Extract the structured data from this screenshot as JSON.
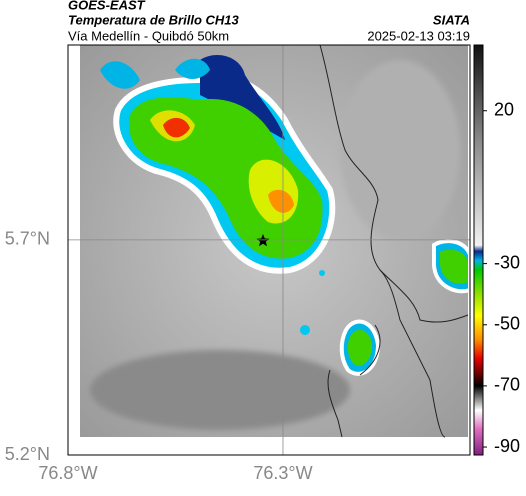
{
  "header": {
    "title": "GOES-EAST",
    "subtitle": "Temperatura de Brillo CH13",
    "location": "Vía Medellín - Quibdó 50km",
    "source": "SIATA",
    "timestamp": "2025-02-13 03:19"
  },
  "map": {
    "xlim": [
      -76.8,
      -75.865
    ],
    "ylim": [
      5.2,
      6.153
    ],
    "xticks": [
      {
        "value": -76.8,
        "label": "76.8°W"
      },
      {
        "value": -76.3,
        "label": "76.3°W"
      }
    ],
    "yticks": [
      {
        "value": 5.2,
        "label": "5.2°N"
      },
      {
        "value": 5.7,
        "label": "5.7°N"
      }
    ],
    "grid": true,
    "colorbar": {
      "clim": [
        -92.6,
        41.5
      ],
      "ticks": [
        20,
        -30,
        -50,
        -70,
        -90
      ],
      "colormap": [
        {
          "value": 41.5,
          "color": "#111111"
        },
        {
          "value": 10,
          "color": "#8a8a8a"
        },
        {
          "value": -24,
          "color": "#f2f2f2"
        },
        {
          "value": -26,
          "color": "#0a2a8a"
        },
        {
          "value": -29,
          "color": "#00b4e6"
        },
        {
          "value": -32,
          "color": "#00c800"
        },
        {
          "value": -40,
          "color": "#90e000"
        },
        {
          "value": -47,
          "color": "#ffff00"
        },
        {
          "value": -55,
          "color": "#ff8c00"
        },
        {
          "value": -61,
          "color": "#e60000"
        },
        {
          "value": -66,
          "color": "#6a0000"
        },
        {
          "value": -70,
          "color": "#000000"
        },
        {
          "value": -78,
          "color": "#ffffff"
        },
        {
          "value": -84,
          "color": "#e070c0"
        },
        {
          "value": -92.6,
          "color": "#802080"
        }
      ]
    }
  }
}
